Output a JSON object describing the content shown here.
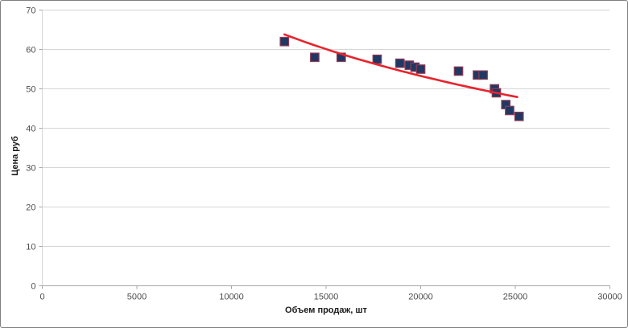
{
  "chart_data": {
    "type": "scatter",
    "title": "",
    "xlabel": "Объем продаж, шт",
    "ylabel": "Цена руб",
    "xlim": [
      0,
      30000
    ],
    "ylim": [
      0,
      70
    ],
    "x_ticks": {
      "values": [
        0,
        5000,
        10000,
        15000,
        20000,
        25000,
        30000
      ],
      "labels": [
        "0",
        "5000",
        "10000",
        "15000",
        "20000",
        "25000",
        "30000"
      ]
    },
    "y_ticks": {
      "values": [
        0,
        10,
        20,
        30,
        40,
        50,
        60,
        70
      ],
      "labels": [
        "0",
        "10",
        "20",
        "30",
        "40",
        "50",
        "60",
        "70"
      ]
    },
    "grid": "horizontal",
    "legend": "none",
    "series": [
      {
        "name": "Цена",
        "marker": "square",
        "points": [
          [
            12800,
            62
          ],
          [
            14400,
            58
          ],
          [
            15800,
            58
          ],
          [
            17700,
            57.5
          ],
          [
            18900,
            56.5
          ],
          [
            19400,
            56
          ],
          [
            19700,
            55.5
          ],
          [
            20000,
            55
          ],
          [
            22000,
            54.5
          ],
          [
            23000,
            53.5
          ],
          [
            23300,
            53.5
          ],
          [
            23900,
            50
          ],
          [
            24000,
            49
          ],
          [
            24500,
            46
          ],
          [
            24700,
            44.5
          ],
          [
            25200,
            43
          ]
        ]
      }
    ],
    "trendline": {
      "type": "logarithmic",
      "a": 287.3,
      "b": -23.63,
      "x_start": 12800,
      "x_end": 25100
    },
    "colors": {
      "marker_fill": "#1F3864",
      "marker_stroke": "#8E3B55",
      "trendline": "#E8232D",
      "gridline": "#D6D6D6",
      "axis_line": "#A6A6A6",
      "tick_text": "#4D4D4D",
      "title_text": "#1A1A1A",
      "background": "#FFFFFF",
      "border": "#7F7F7F"
    }
  }
}
